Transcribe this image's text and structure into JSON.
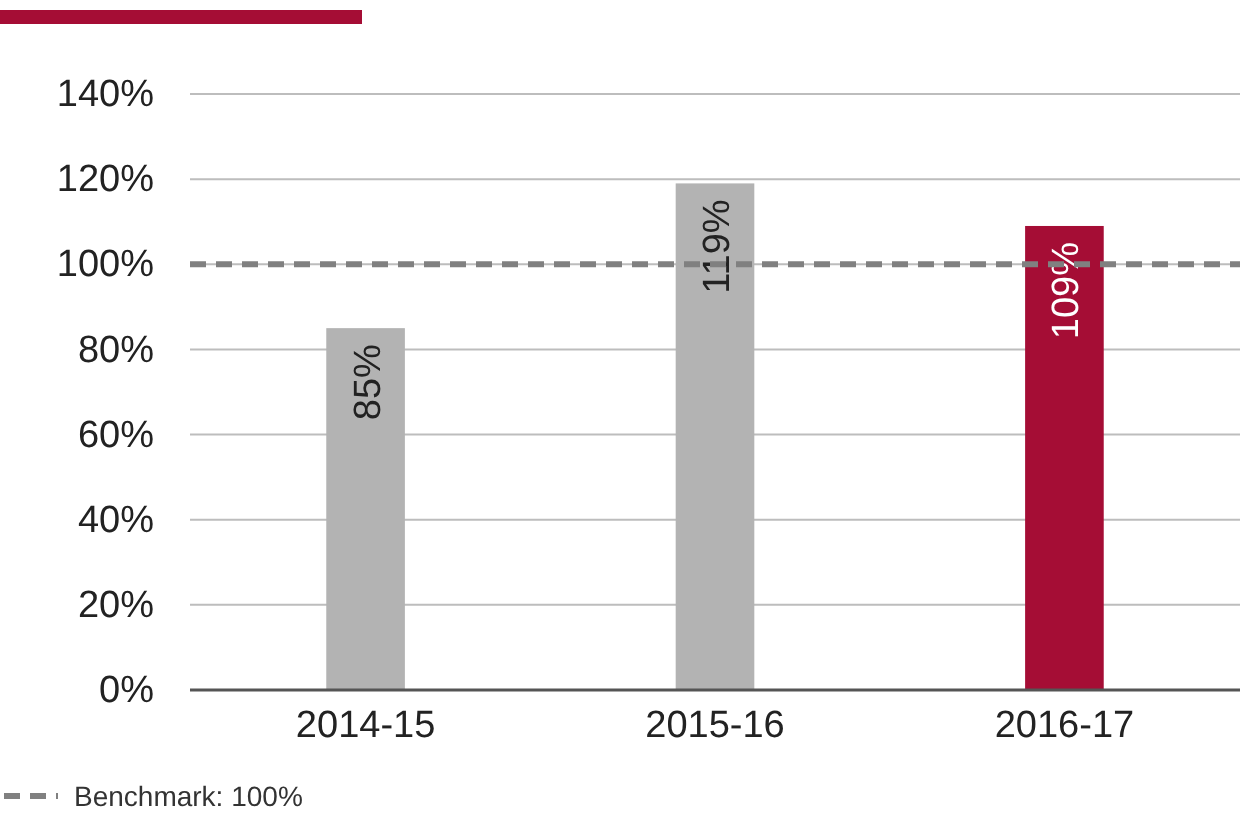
{
  "chart_data": {
    "type": "bar",
    "categories": [
      "2014-15",
      "2015-16",
      "2016-17"
    ],
    "values": [
      85,
      119,
      109
    ],
    "colors": [
      "#b3b3b3",
      "#b3b3b3",
      "#a50d35"
    ],
    "value_labels": [
      "85%",
      "119%",
      "109%"
    ],
    "ylim": [
      0,
      140
    ],
    "yticks": [
      {
        "value": 0,
        "label": "0%"
      },
      {
        "value": 20,
        "label": "20%"
      },
      {
        "value": 40,
        "label": "40%"
      },
      {
        "value": 60,
        "label": "60%"
      },
      {
        "value": 80,
        "label": "80%"
      },
      {
        "value": 100,
        "label": "100%"
      },
      {
        "value": 120,
        "label": "120%"
      },
      {
        "value": 140,
        "label": "140%"
      }
    ],
    "grid": "y",
    "ref_lines": [
      {
        "axis": "y",
        "value": 100,
        "label": "Benchmark: 100%",
        "color": "#808080",
        "line_style": "dashed"
      }
    ],
    "legend": "bottom left"
  }
}
